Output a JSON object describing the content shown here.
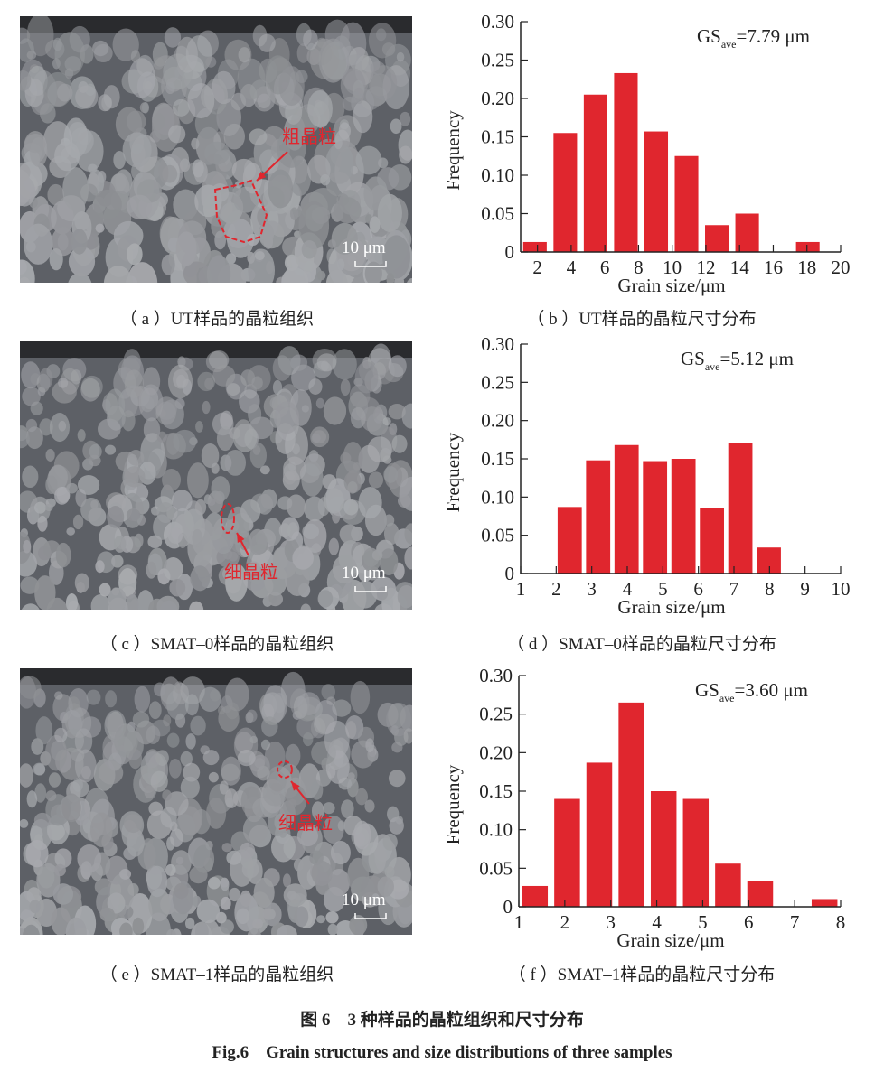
{
  "micrographs": [
    {
      "id": "a",
      "annotation": "粗晶粒",
      "scale_bar": "10 μm",
      "caption": "（ a ）UT样品的晶粒组织"
    },
    {
      "id": "c",
      "annotation": "细晶粒",
      "scale_bar": "10 μm",
      "caption": "（ c ）SMAT–0样品的晶粒组织"
    },
    {
      "id": "e",
      "annotation": "细晶粒",
      "scale_bar": "10 μm",
      "caption": "（ e ）SMAT–1样品的晶粒组织"
    }
  ],
  "captions": {
    "b": "（ b ）UT样品的晶粒尺寸分布",
    "d": "（ d ）SMAT–0样品的晶粒尺寸分布",
    "f": "（ f ）SMAT–1样品的晶粒尺寸分布"
  },
  "figure": {
    "title_cn": "图 6　3 种样品的晶粒组织和尺寸分布",
    "title_en": "Fig.6　Grain structures and size distributions of three samples"
  },
  "colors": {
    "bar": "#e0262e",
    "annotation": "#e0262e"
  },
  "chart_data": [
    {
      "type": "bar",
      "panel": "b",
      "xlabel": "Grain size/μm",
      "ylabel": "Frequency",
      "annotation_main": "GS",
      "annotation_sub": "ave",
      "annotation_value": "=7.79 μm",
      "xlim": [
        1,
        20
      ],
      "xticks": [
        2,
        4,
        6,
        8,
        10,
        12,
        14,
        16,
        18,
        20
      ],
      "ylim": [
        0,
        0.3
      ],
      "yticks": [
        "0",
        "0.05",
        "0.10",
        "0.15",
        "0.20",
        "0.25",
        "0.30"
      ],
      "bar_width": 1.4,
      "x": [
        1.85,
        3.65,
        5.45,
        7.25,
        9.05,
        10.85,
        12.65,
        14.45,
        16.25,
        18.05
      ],
      "values": [
        0.013,
        0.155,
        0.205,
        0.233,
        0.157,
        0.125,
        0.035,
        0.05,
        0,
        0.013
      ]
    },
    {
      "type": "bar",
      "panel": "d",
      "xlabel": "Grain size/μm",
      "ylabel": "Frequency",
      "annotation_main": "GS",
      "annotation_sub": "ave",
      "annotation_value": "=5.12 μm",
      "xlim": [
        1,
        10
      ],
      "xticks": [
        1,
        2,
        3,
        4,
        5,
        6,
        7,
        8,
        9,
        10
      ],
      "ylim": [
        0,
        0.3
      ],
      "yticks": [
        "0",
        "0.05",
        "0.10",
        "0.15",
        "0.20",
        "0.25",
        "0.30"
      ],
      "bar_width": 0.68,
      "x": [
        2.38,
        3.18,
        3.98,
        4.78,
        5.58,
        6.38,
        7.18,
        7.98
      ],
      "values": [
        0.087,
        0.148,
        0.168,
        0.147,
        0.15,
        0.086,
        0.171,
        0.034
      ]
    },
    {
      "type": "bar",
      "panel": "f",
      "xlabel": "Grain size/μm",
      "ylabel": "Frequency",
      "annotation_main": "GS",
      "annotation_sub": "ave",
      "annotation_value": "=3.60 μm",
      "xlim": [
        1,
        8
      ],
      "xticks": [
        1,
        2,
        3,
        4,
        5,
        6,
        7,
        8
      ],
      "ylim": [
        0,
        0.3
      ],
      "yticks": [
        "0",
        "0.05",
        "0.10",
        "0.15",
        "0.20",
        "0.25",
        "0.30"
      ],
      "bar_width": 0.56,
      "x": [
        1.35,
        2.05,
        2.75,
        3.45,
        4.15,
        4.85,
        5.55,
        6.25,
        6.95,
        7.65
      ],
      "values": [
        0.027,
        0.14,
        0.187,
        0.265,
        0.15,
        0.14,
        0.056,
        0.033,
        0,
        0.01
      ]
    }
  ]
}
